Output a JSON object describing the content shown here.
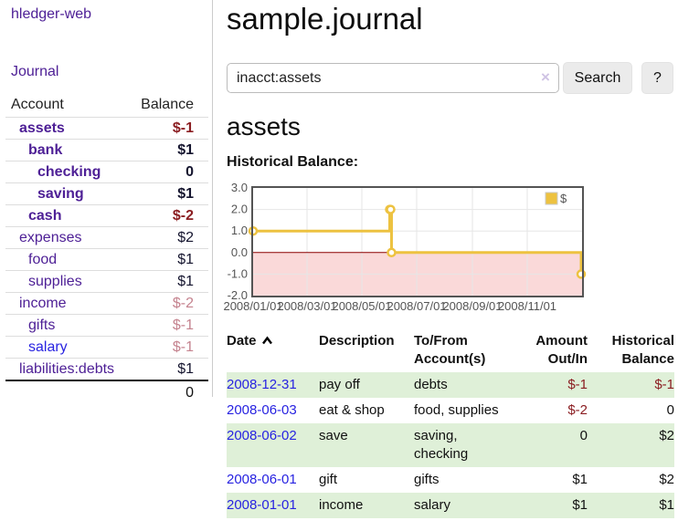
{
  "sidebar": {
    "brand": "hledger-web",
    "journal_label": "Journal",
    "accounts_table": {
      "headers": {
        "account": "Account",
        "balance": "Balance"
      },
      "rows": [
        {
          "name": "assets",
          "balance": "$-1",
          "depth": 0,
          "bold": true
        },
        {
          "name": "bank",
          "balance": "$1",
          "depth": 1,
          "bold": true
        },
        {
          "name": "checking",
          "balance": "0",
          "depth": 2,
          "bold": true
        },
        {
          "name": "saving",
          "balance": "$1",
          "depth": 2,
          "bold": true
        },
        {
          "name": "cash",
          "balance": "$-2",
          "depth": 1,
          "bold": true
        },
        {
          "name": "expenses",
          "balance": "$2",
          "depth": 0,
          "bold": false
        },
        {
          "name": "food",
          "balance": "$1",
          "depth": 1,
          "bold": false
        },
        {
          "name": "supplies",
          "balance": "$1",
          "depth": 1,
          "bold": false
        },
        {
          "name": "income",
          "balance": "$-2",
          "depth": 0,
          "bold": false
        },
        {
          "name": "gifts",
          "balance": "$-1",
          "depth": 1,
          "bold": false
        },
        {
          "name": "salary",
          "balance": "$-1",
          "depth": 1,
          "bold": false,
          "link": "blue"
        },
        {
          "name": "liabilities:debts",
          "balance": "$1",
          "depth": 0,
          "bold": false
        }
      ],
      "total": "0"
    }
  },
  "main": {
    "title": "sample.journal",
    "search": {
      "value": "inacct:assets",
      "clear_icon": "×",
      "button_label": "Search",
      "help_label": "?"
    },
    "account_heading": "assets",
    "chart_label": "Historical Balance:",
    "register_table": {
      "headers": {
        "date": "Date",
        "description": "Description",
        "tofrom_line1": "To/From",
        "tofrom_line2": "Account(s)",
        "amount_line1": "Amount",
        "amount_line2": "Out/In",
        "balance_line1": "Historical",
        "balance_line2": "Balance"
      },
      "rows": [
        {
          "date": "2008-12-31",
          "description": "pay off",
          "account": "debts",
          "amount": "$-1",
          "balance": "$-1"
        },
        {
          "date": "2008-06-03",
          "description": "eat & shop",
          "account": "food, supplies",
          "amount": "$-2",
          "balance": "0"
        },
        {
          "date": "2008-06-02",
          "description": "save",
          "account": "saving,\nchecking",
          "amount": "0",
          "balance": "$2"
        },
        {
          "date": "2008-06-01",
          "description": "gift",
          "account": "gifts",
          "amount": "$1",
          "balance": "$2"
        },
        {
          "date": "2008-01-01",
          "description": "income",
          "account": "salary",
          "amount": "$1",
          "balance": "$1"
        }
      ]
    }
  },
  "chart_data": {
    "type": "line",
    "style": "step",
    "title": "Historical Balance",
    "series": [
      {
        "name": "$",
        "color": "#EDC240",
        "points": [
          [
            "2008-01-01",
            1
          ],
          [
            "2008-06-01",
            2
          ],
          [
            "2008-06-02",
            2
          ],
          [
            "2008-06-03",
            0
          ],
          [
            "2008-12-31",
            -1
          ]
        ]
      }
    ],
    "x_ticks": [
      "2008/01/01",
      "2008/03/01",
      "2008/05/01",
      "2008/07/01",
      "2008/09/01",
      "2008/11/01"
    ],
    "y_ticks": [
      3.0,
      2.0,
      1.0,
      0.0,
      -1.0,
      -2.0
    ],
    "xlim": [
      "2008-01-01",
      "2009-01-01"
    ],
    "ylim": [
      -2,
      3
    ],
    "grid": true,
    "legend_position": "top-right",
    "negative_region_color": "#fad9d9",
    "zero_line_color": "#8b0000",
    "grid_color": "#e6e6e6",
    "border_color": "#545454"
  },
  "colors": {
    "link_purple": "#4e2096",
    "link_blue": "#2823e1",
    "negative": "#8b1e22",
    "negative_muted": "#c5838f",
    "row_highlight": "#dff0d8",
    "chart_series": "#EDC240"
  }
}
